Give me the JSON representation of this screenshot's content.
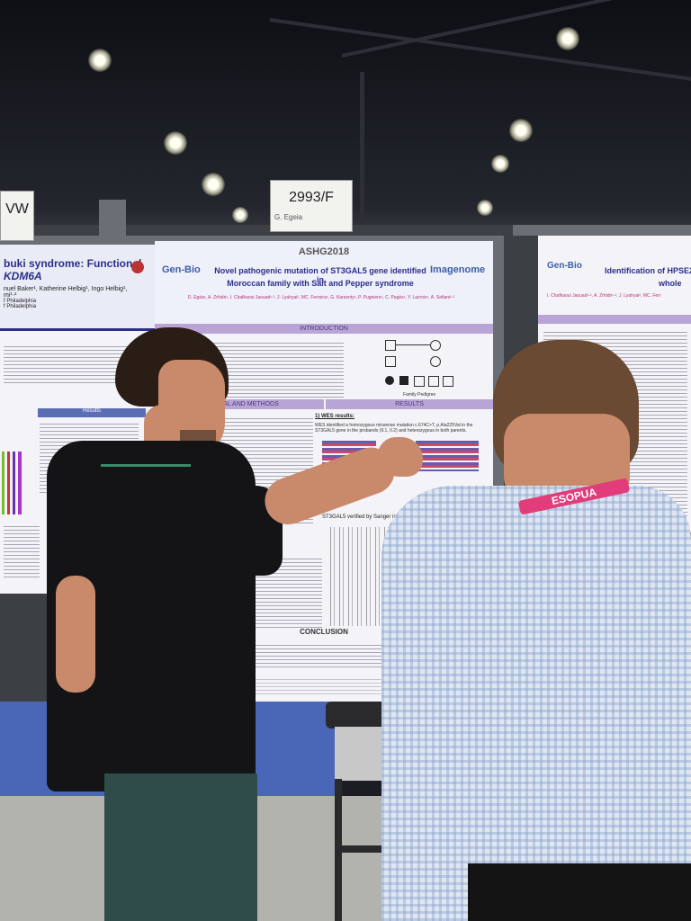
{
  "booth": {
    "left_sign": "VW",
    "center_sign_number": "2993/F",
    "center_sign_name": "G. Egeia"
  },
  "left_poster": {
    "title_line1": "buki syndrome: Functional",
    "title_line2": "KDM6A",
    "authors": "nuel Baker¹, Katherine Helbig¹, Ingo Helbig¹,",
    "authors_line2": "mi¹·²",
    "affil1": "f Philadelphia",
    "affil2": "f Philadelphia",
    "results_heading": "Results"
  },
  "center_poster": {
    "conference": "ASHG2018",
    "logo_left": "Gen-Bio",
    "logo_right": "Imagenome",
    "title_line1": "Novel pathogenic mutation of ST3GAL5 gene identified in",
    "title_line2": "Moroccan family with Salt and Pepper syndrome",
    "authors": "D. Egéa¹, A. Zrhidri¹, I. Chafkaoui Jaouad¹·², J. Lyahyai², MC. Ferreira¹, G. Karsenty¹, P. Pugniere¹, C. Pagès¹, Y. Lacroix¹, A. Sefiani¹·²",
    "section_intro": "INTRODUCTION",
    "section_methods": "MATERIAL AND METHODS",
    "section_results": "RESULTS",
    "wes_heading": "1) WES results:",
    "wes_text": "WES identified a homozygous missense mutation c.674C>T, p.Ala225Val in the ST3GAL5 gene in the probands (II.1, II.2) and heterozygous in both parents.",
    "sanger_text": "ST3GAL5 verified by Sanger is completely consistent",
    "conclusion": "CONCLUSION",
    "pedigree_label": "Family Pedigree"
  },
  "right_poster": {
    "logo": "Gen-Bio",
    "title_line1": "Identification of HPSE2",
    "title_line2": "whole",
    "authors": "I. Chafkaoui Jaouad¹·², A. Zrhidri¹·², J. Lyahyai², MC. Ferr"
  },
  "lanyard_text": "ESOPUA"
}
